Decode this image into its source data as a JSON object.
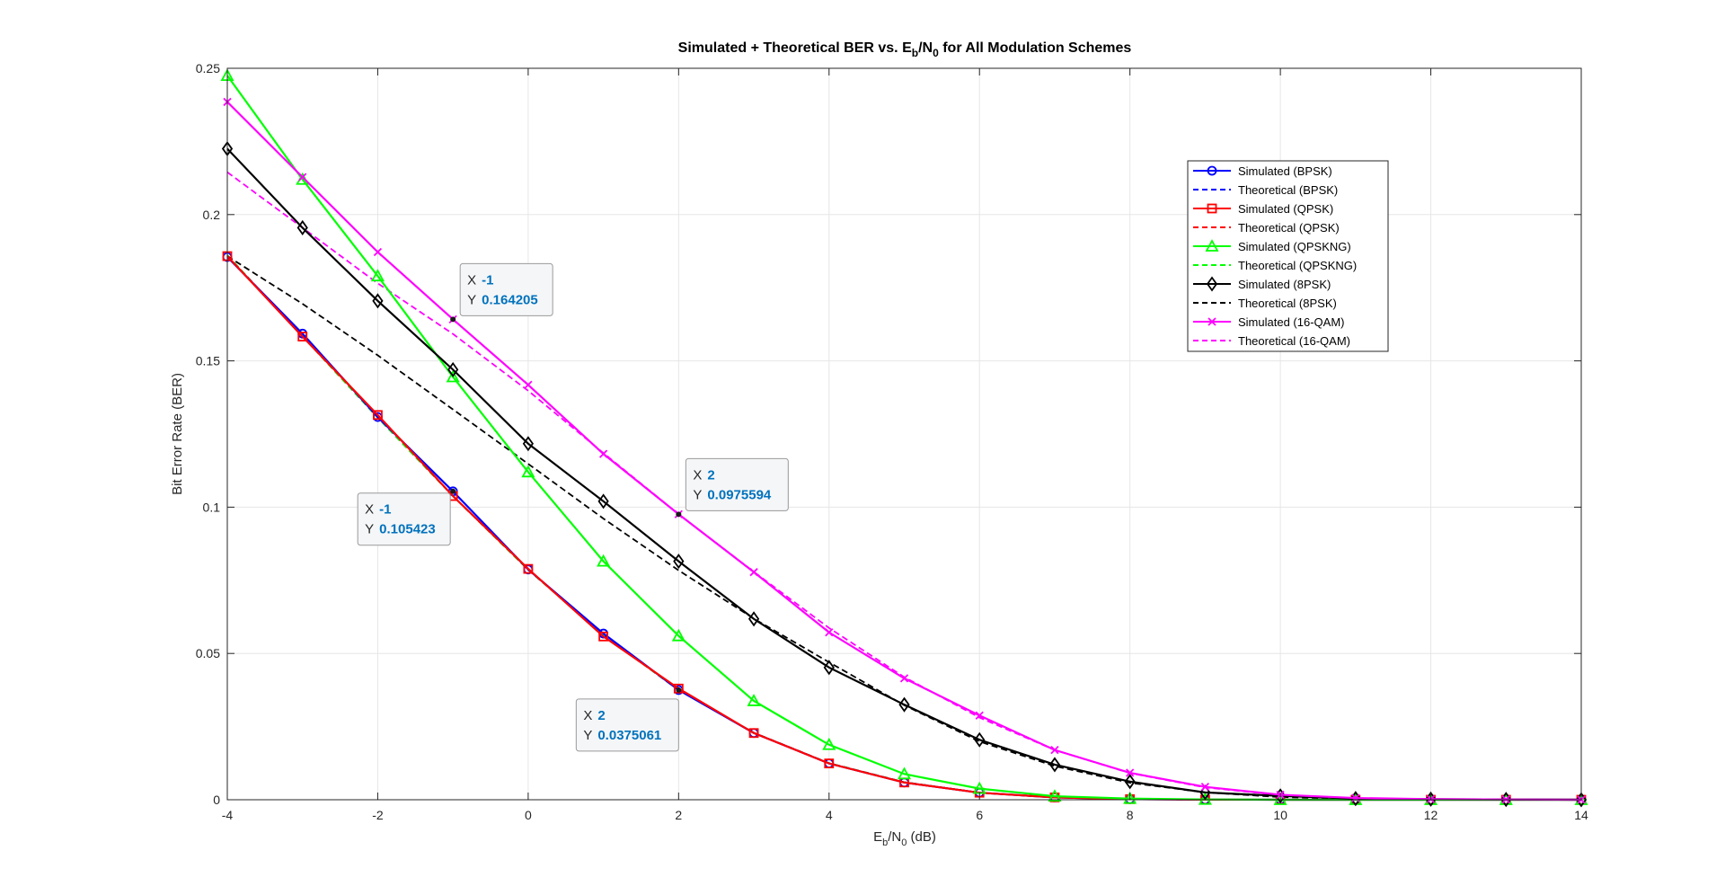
{
  "figure": {
    "title_main": "Simulated + Theoretical BER vs. E",
    "title_sub1": "b",
    "title_mid": "/N",
    "title_sub2": "0",
    "title_end": " for All Modulation Schemes",
    "xlabel_main": "E",
    "xlabel_sub1": "b",
    "xlabel_mid": "/N",
    "xlabel_sub2": "0",
    "xlabel_end": " (dB)",
    "ylabel": "Bit Error Rate (BER)"
  },
  "chart_data": {
    "type": "line",
    "title": "Simulated + Theoretical BER vs. Eb/N0 for All Modulation Schemes",
    "xlabel": "Eb/N0 (dB)",
    "ylabel": "Bit Error Rate (BER)",
    "xlim": [
      -4,
      14
    ],
    "ylim": [
      0,
      0.25
    ],
    "xticks": [
      -4,
      -2,
      0,
      2,
      4,
      6,
      8,
      10,
      12,
      14
    ],
    "yticks": [
      0,
      0.05,
      0.1,
      0.15,
      0.2,
      0.25
    ],
    "xtick_labels": [
      "-4",
      "-2",
      "0",
      "2",
      "4",
      "6",
      "8",
      "10",
      "12",
      "14"
    ],
    "ytick_labels": [
      "0",
      "0.05",
      "0.1",
      "0.15",
      "0.2",
      "0.25"
    ],
    "grid": true,
    "legend_position": "top-right",
    "x": [
      -4,
      -3,
      -2,
      -1,
      0,
      1,
      2,
      3,
      4,
      5,
      6,
      7,
      8,
      9,
      10,
      11,
      12,
      13,
      14
    ],
    "series": [
      {
        "name": "Simulated (BPSK)",
        "color": "#0000ff",
        "style": "solid",
        "marker": "circle",
        "values": [
          0.1855,
          0.1593,
          0.1308,
          0.1054,
          0.0787,
          0.0568,
          0.0375,
          0.0228,
          0.0124,
          0.0059,
          0.0024,
          0.0008,
          0.0002,
          4e-05,
          4e-06,
          0,
          0,
          0,
          0
        ]
      },
      {
        "name": "Theoretical (BPSK)",
        "color": "#0000ff",
        "style": "dashed",
        "marker": "none",
        "values": [
          0.1861,
          0.1584,
          0.1306,
          0.1038,
          0.0786,
          0.0563,
          0.0375,
          0.0229,
          0.0125,
          0.006,
          0.0024,
          0.0008,
          0.0002,
          4e-05,
          4e-06,
          0,
          0,
          0,
          0
        ]
      },
      {
        "name": "Simulated (QPSK)",
        "color": "#ff0000",
        "style": "solid",
        "marker": "square",
        "values": [
          0.1858,
          0.1583,
          0.1315,
          0.1038,
          0.0789,
          0.0558,
          0.038,
          0.0228,
          0.0124,
          0.0059,
          0.0024,
          0.0008,
          0.0002,
          4e-05,
          4e-06,
          0,
          0,
          0,
          0
        ]
      },
      {
        "name": "Theoretical (QPSK)",
        "color": "#ff0000",
        "style": "dashed",
        "marker": "none",
        "values": [
          0.1861,
          0.1584,
          0.1306,
          0.1038,
          0.0786,
          0.0563,
          0.0375,
          0.0229,
          0.0125,
          0.006,
          0.0024,
          0.0008,
          0.0002,
          4e-05,
          4e-06,
          0,
          0,
          0,
          0
        ]
      },
      {
        "name": "Simulated (QPSKNG)",
        "color": "#00ff00",
        "style": "solid",
        "marker": "triangle",
        "values": [
          0.2475,
          0.212,
          0.179,
          0.1445,
          0.112,
          0.0815,
          0.056,
          0.0338,
          0.0188,
          0.0088,
          0.0038,
          0.0012,
          0.0004,
          0.0001,
          0,
          0,
          0,
          0,
          0
        ]
      },
      {
        "name": "Theoretical (QPSKNG)",
        "color": "#00ff00",
        "style": "dashed",
        "marker": "none",
        "values": [
          0.1861,
          0.1584,
          0.1306,
          0.1038,
          0.0786,
          0.0563,
          0.0375,
          0.0229,
          0.0125,
          0.006,
          0.0024,
          0.0008,
          0.0002,
          4e-05,
          4e-06,
          0,
          0,
          0,
          0
        ]
      },
      {
        "name": "Simulated (8PSK)",
        "color": "#000000",
        "style": "solid",
        "marker": "diamond",
        "values": [
          0.2225,
          0.1955,
          0.1705,
          0.147,
          0.1217,
          0.102,
          0.0815,
          0.0618,
          0.0452,
          0.0325,
          0.0205,
          0.012,
          0.0062,
          0.0025,
          0.0013,
          0.0004,
          0.0002,
          0.0001,
          0
        ]
      },
      {
        "name": "Theoretical (8PSK)",
        "color": "#000000",
        "style": "dashed",
        "marker": "none",
        "values": [
          0.1858,
          0.1695,
          0.1519,
          0.1334,
          0.1148,
          0.0961,
          0.0784,
          0.0619,
          0.047,
          0.0323,
          0.0199,
          0.0115,
          0.0058,
          0.0025,
          0.0009,
          0.0003,
          0.0001,
          0,
          0
        ]
      },
      {
        "name": "Simulated (16-QAM)",
        "color": "#ff00ff",
        "style": "solid",
        "marker": "x",
        "values": [
          0.2385,
          0.2128,
          0.1872,
          0.1642,
          0.1418,
          0.1182,
          0.0976,
          0.0778,
          0.0572,
          0.0415,
          0.0288,
          0.017,
          0.0092,
          0.0044,
          0.0017,
          0.0006,
          0.0002,
          0.0001,
          0
        ]
      },
      {
        "name": "Theoretical (16-QAM)",
        "color": "#ff00ff",
        "style": "dashed",
        "marker": "none",
        "values": [
          0.2145,
          0.1955,
          0.1765,
          0.1592,
          0.1398,
          0.1185,
          0.0976,
          0.0779,
          0.0587,
          0.0419,
          0.0281,
          0.017,
          0.0091,
          0.0042,
          0.0016,
          0.0005,
          0.0001,
          0,
          0
        ]
      }
    ],
    "annotations": [
      {
        "x": -1,
        "y": 0.164205,
        "x_label": "X",
        "x_value": "-1",
        "y_label": "Y",
        "y_value": "0.164205"
      },
      {
        "x": -1,
        "y": 0.105423,
        "x_label": "X",
        "x_value": "-1",
        "y_label": "Y",
        "y_value": "0.105423"
      },
      {
        "x": 2,
        "y": 0.0975594,
        "x_label": "X",
        "x_value": "2",
        "y_label": "Y",
        "y_value": "0.0975594"
      },
      {
        "x": 2,
        "y": 0.0375061,
        "x_label": "X",
        "x_value": "2",
        "y_label": "Y",
        "y_value": "0.0375061"
      }
    ]
  }
}
